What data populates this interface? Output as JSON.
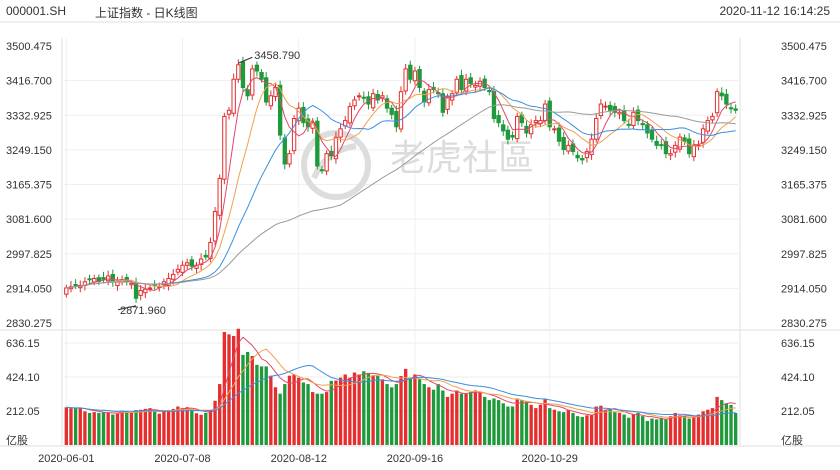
{
  "header": {
    "code": "000001.SH",
    "name": "上证指数 - 日K线图",
    "timestamp": "2020-11-12 16:14:25"
  },
  "watermark": {
    "text": "老虎社區"
  },
  "colors": {
    "up": "#e62e2e",
    "down": "#1e9a3c",
    "ma5": "#e0486a",
    "ma10": "#f0a050",
    "ma20": "#3a8fe0",
    "ma60": "#9a9a9a",
    "grid": "#dfdfdf"
  },
  "chart_data": [
    {
      "type": "candlestick",
      "ylim": [
        2830.275,
        3500.475
      ],
      "y_ticks": [
        "3500.475",
        "3416.700",
        "3332.925",
        "3249.150",
        "3165.375",
        "3081.600",
        "2997.825",
        "2914.050",
        "2830.275"
      ],
      "x_ticks": [
        "2020-06-01",
        "2020-07-08",
        "2020-08-12",
        "2020-09-16",
        "2020-10-29"
      ],
      "annotations": [
        {
          "text": "3458.790",
          "value": 3458.79
        },
        {
          "text": "2871.960",
          "value": 2871.96
        }
      ],
      "close_series": [
        2915,
        2918,
        2923,
        2921,
        2930,
        2935,
        2938,
        2931,
        2936,
        2944,
        2930,
        2931,
        2935,
        2930,
        2926,
        2890,
        2909,
        2912,
        2915,
        2920,
        2919,
        2930,
        2938,
        2948,
        2960,
        2970,
        2976,
        2968,
        2970,
        2985,
        2990,
        3025,
        3100,
        3180,
        3330,
        3345,
        3420,
        3455,
        3400,
        3380,
        3445,
        3440,
        3420,
        3365,
        3380,
        3400,
        3285,
        3215,
        3240,
        3325,
        3350,
        3315,
        3305,
        3315,
        3210,
        3200,
        3240,
        3235,
        3280,
        3300,
        3320,
        3354,
        3370,
        3380,
        3374,
        3360,
        3385,
        3370,
        3380,
        3350,
        3335,
        3305,
        3390,
        3445,
        3420,
        3440,
        3400,
        3365,
        3395,
        3395,
        3385,
        3340,
        3375,
        3385,
        3420,
        3395,
        3420,
        3410,
        3405,
        3415,
        3400,
        3390,
        3325,
        3315,
        3295,
        3275,
        3280,
        3330,
        3315,
        3290,
        3310,
        3320,
        3320,
        3360,
        3305,
        3300,
        3270,
        3250,
        3260,
        3245,
        3230,
        3225,
        3245,
        3275,
        3325,
        3360,
        3355,
        3345,
        3340,
        3340,
        3320,
        3310,
        3340,
        3320,
        3310,
        3290,
        3275,
        3260,
        3260,
        3240,
        3240,
        3260,
        3280,
        3270,
        3240,
        3260,
        3260,
        3300,
        3320,
        3330,
        3390,
        3380,
        3360,
        3350,
        3345
      ],
      "ma_series_keys": [
        "MA5",
        "MA10",
        "MA20",
        "MA60"
      ]
    },
    {
      "type": "bar",
      "ylim": [
        0,
        636.15
      ],
      "y_ticks": [
        "636.15",
        "424.10",
        "212.05"
      ],
      "y_label": "亿股",
      "values": [
        235,
        230,
        228,
        232,
        210,
        200,
        205,
        200,
        205,
        200,
        190,
        195,
        215,
        210,
        205,
        218,
        220,
        225,
        230,
        208,
        195,
        215,
        218,
        225,
        240,
        230,
        236,
        220,
        198,
        188,
        200,
        215,
        276,
        380,
        705,
        690,
        680,
        725,
        562,
        580,
        555,
        500,
        490,
        490,
        432,
        360,
        320,
        380,
        432,
        440,
        420,
        390,
        380,
        330,
        320,
        320,
        330,
        400,
        402,
        420,
        440,
        420,
        452,
        440,
        460,
        450,
        435,
        430,
        410,
        380,
        360,
        380,
        430,
        475,
        420,
        440,
        410,
        380,
        360,
        345,
        380,
        340,
        300,
        320,
        340,
        320,
        320,
        330,
        340,
        330,
        300,
        280,
        290,
        280,
        260,
        240,
        240,
        290,
        280,
        270,
        250,
        230,
        250,
        290,
        230,
        220,
        210,
        205,
        220,
        200,
        180,
        175,
        185,
        190,
        240,
        245,
        220,
        225,
        205,
        200,
        190,
        170,
        190,
        200,
        180,
        150,
        165,
        160,
        170,
        160,
        180,
        200,
        185,
        180,
        165,
        175,
        190,
        210,
        220,
        230,
        300,
        280,
        260,
        250,
        200
      ],
      "ma_series_keys": [
        "MA5",
        "MA10",
        "MA20"
      ]
    }
  ]
}
